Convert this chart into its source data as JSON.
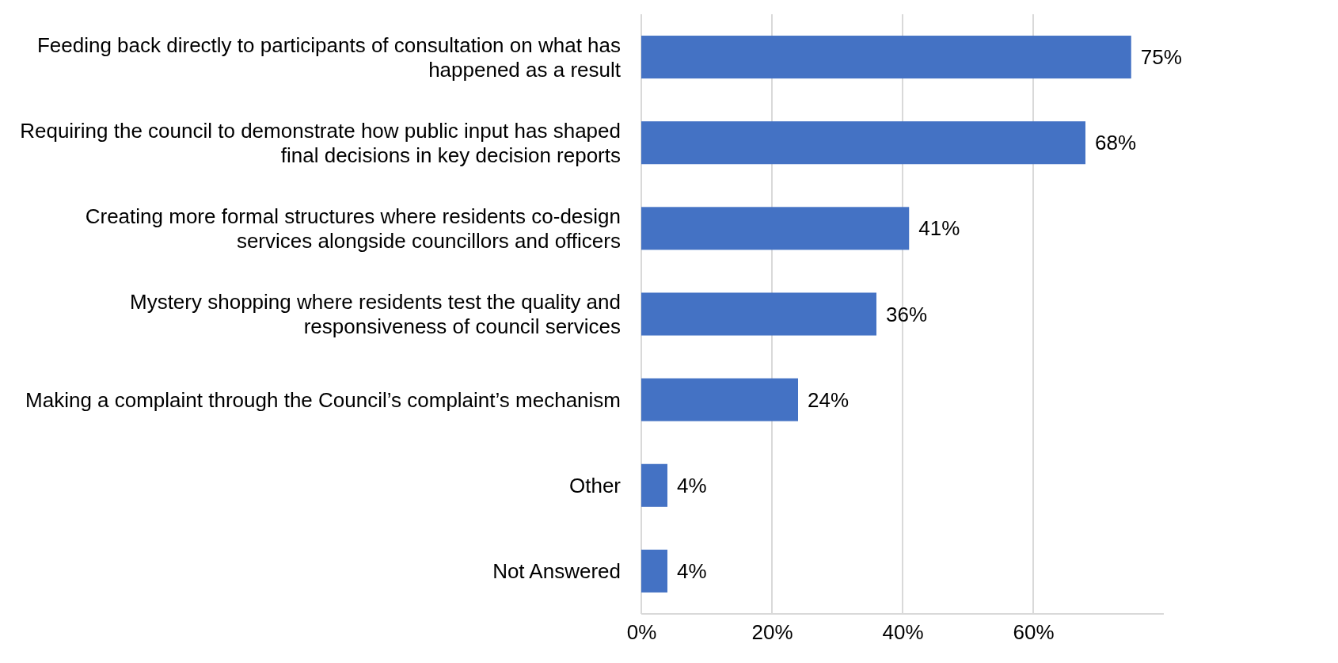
{
  "chart_data": {
    "type": "bar",
    "orientation": "horizontal",
    "categories": [
      "Feeding back directly to participants of consultation on what has happened as a result",
      "Requiring the council to demonstrate how public input has shaped final decisions in key decision reports",
      "Creating more formal structures where residents co-design services alongside councillors and officers",
      "Mystery shopping where residents test the quality and responsiveness of council services",
      "Making a complaint through the Council’s complaint’s mechanism",
      "Other",
      "Not Answered"
    ],
    "values": [
      75,
      68,
      41,
      36,
      24,
      4,
      4
    ],
    "color": "#4472c4",
    "xlim": [
      0,
      80
    ],
    "xticks": [
      {
        "value": 0,
        "label": "0%"
      },
      {
        "value": 20,
        "label": "20%"
      },
      {
        "value": 40,
        "label": "40%"
      },
      {
        "value": 60,
        "label": "60%"
      }
    ],
    "grid": "x",
    "data_labels": true,
    "value_labels": [
      "75%",
      "68%",
      "41%",
      "36%",
      "24%",
      "4%",
      "4%"
    ]
  }
}
